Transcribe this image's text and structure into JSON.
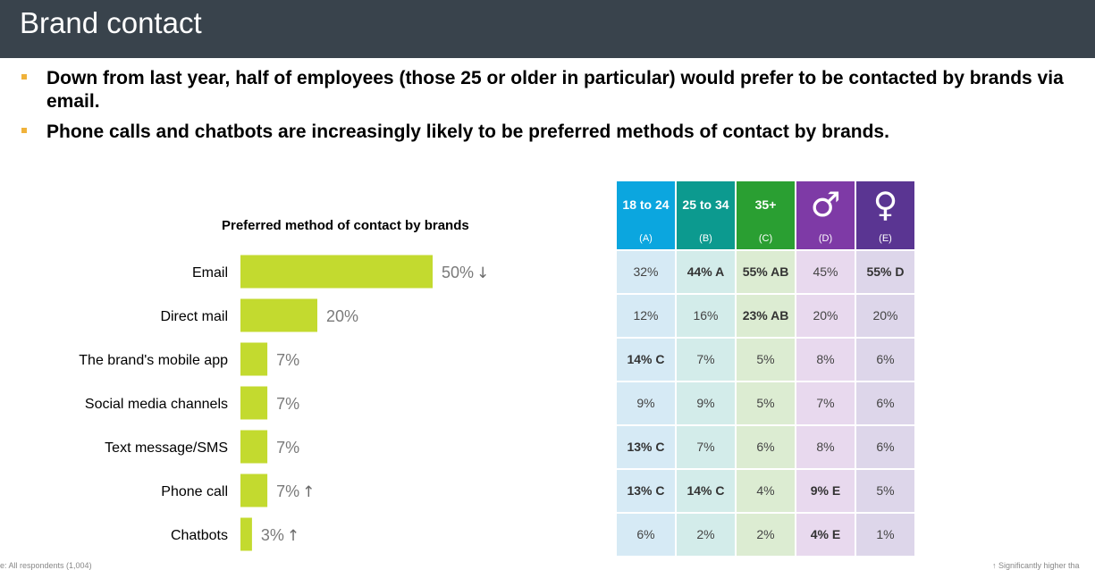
{
  "header": {
    "title": "Brand contact"
  },
  "bullets": [
    "Down from last year, half of employees (those 25 or older in particular) would prefer to be contacted by brands via email.",
    "Phone calls and chatbots are increasingly likely to be preferred methods of contact by brands."
  ],
  "colors": {
    "bar": "#c3da2f",
    "bullet": "#f0b23a",
    "header_bg": "#39434c"
  },
  "chart_data": {
    "type": "bar",
    "orientation": "horizontal",
    "title": "Preferred method of contact by brands",
    "categories": [
      "Email",
      "Direct mail",
      "The brand's mobile app",
      "Social media channels",
      "Text message/SMS",
      "Phone call",
      "Chatbots"
    ],
    "values": [
      50,
      20,
      7,
      7,
      7,
      7,
      3
    ],
    "value_labels": [
      "50%",
      "20%",
      "7%",
      "7%",
      "7%",
      "7%",
      "3%"
    ],
    "trend_markers": [
      "down",
      "",
      "",
      "",
      "",
      "up",
      "up"
    ],
    "xlim": [
      0,
      60
    ]
  },
  "table": {
    "columns": [
      {
        "label": "18 to 24",
        "letter": "(A)",
        "color": "#0ba6df",
        "body_color": "#d6eaf5"
      },
      {
        "label": "25 to 34",
        "letter": "(B)",
        "color": "#0c9a8f",
        "body_color": "#d3ecea"
      },
      {
        "label": "35+",
        "letter": "(C)",
        "color": "#2a9f32",
        "body_color": "#dcecd2"
      },
      {
        "label": "",
        "symbol": "♂",
        "symbol_name": "male-symbol-icon",
        "letter": "(D)",
        "color": "#7e3aa6",
        "body_color": "#e8d9ee"
      },
      {
        "label": "",
        "symbol": "♀",
        "symbol_name": "female-symbol-icon",
        "letter": "(E)",
        "color": "#5a3592",
        "body_color": "#ddd6ea"
      }
    ],
    "rows": [
      [
        "32%",
        "44% A",
        "55% AB",
        "45%",
        "55% D"
      ],
      [
        "12%",
        "16%",
        "23% AB",
        "20%",
        "20%"
      ],
      [
        "14% C",
        "7%",
        "5%",
        "8%",
        "6%"
      ],
      [
        "9%",
        "9%",
        "5%",
        "7%",
        "6%"
      ],
      [
        "13% C",
        "7%",
        "6%",
        "8%",
        "6%"
      ],
      [
        "13% C",
        "14% C",
        "4%",
        "9% E",
        "5%"
      ],
      [
        "6%",
        "2%",
        "2%",
        "4% E",
        "1%"
      ]
    ]
  },
  "footer": {
    "left": "e: All respondents (1,004)",
    "right": "↑  Significantly higher tha"
  }
}
